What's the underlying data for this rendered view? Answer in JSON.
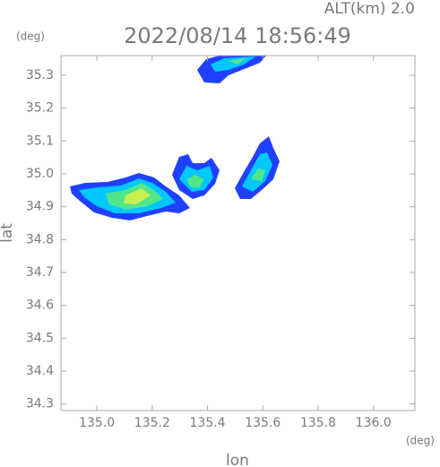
{
  "chart_data": {
    "type": "radar-echo",
    "title": "2022/08/14 18:56:49",
    "subtitle": "ALT(km) 2.0",
    "x_label": "lon",
    "y_label": "lat",
    "x_unit": "(deg)",
    "y_unit": "(deg)",
    "xlim": [
      134.87,
      136.15
    ],
    "ylim": [
      34.28,
      35.36
    ],
    "xticks": [
      {
        "value": 135,
        "label": "135.0"
      },
      135.2,
      135.4,
      135.6,
      135.8,
      {
        "value": 136,
        "label": "136.0"
      }
    ],
    "yticks": [
      34.3,
      34.4,
      34.5,
      34.6,
      34.7,
      34.8,
      34.9,
      {
        "value": 35,
        "label": "35.0"
      },
      35.1,
      35.2,
      35.3
    ]
  }
}
